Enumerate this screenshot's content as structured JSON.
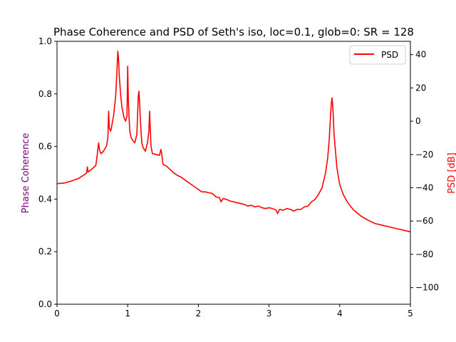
{
  "chart_data": {
    "type": "line",
    "title": "Phase Coherence and PSD of Seth's iso, loc=0.1, glob=0: SR = 128",
    "xlabel": "",
    "ylabel_left": "Phase Coherence",
    "ylabel_right": "PSD [dB]",
    "xlim": [
      0,
      5
    ],
    "ylim_left": [
      0.0,
      1.0
    ],
    "ylim_right": [
      -110,
      48
    ],
    "x_ticks": [
      "0",
      "1",
      "2",
      "3",
      "4",
      "5"
    ],
    "y_ticks_left": [
      "0.0",
      "0.2",
      "0.4",
      "0.6",
      "0.8",
      "1.0"
    ],
    "y_ticks_right": [
      "−100",
      "−80",
      "−60",
      "−40",
      "−20",
      "0",
      "20",
      "40"
    ],
    "legend": {
      "position": "top-right",
      "entries": [
        "PSD"
      ]
    },
    "grid": false,
    "series": [
      {
        "name": "PSD",
        "axis": "right",
        "color": "#ff0000",
        "x": [
          0,
          0.1,
          0.2,
          0.3,
          0.4,
          0.42,
          0.43,
          0.44,
          0.5,
          0.55,
          0.57,
          0.58,
          0.59,
          0.6,
          0.62,
          0.65,
          0.7,
          0.72,
          0.73,
          0.74,
          0.76,
          0.8,
          0.83,
          0.85,
          0.86,
          0.87,
          0.88,
          0.9,
          0.92,
          0.95,
          0.97,
          0.99,
          1.0,
          1.01,
          1.02,
          1.03,
          1.05,
          1.08,
          1.1,
          1.13,
          1.15,
          1.16,
          1.17,
          1.18,
          1.2,
          1.22,
          1.25,
          1.28,
          1.3,
          1.31,
          1.32,
          1.33,
          1.35,
          1.4,
          1.45,
          1.47,
          1.48,
          1.5,
          1.55,
          1.6,
          1.65,
          1.7,
          1.75,
          1.8,
          1.85,
          1.9,
          1.95,
          2.0,
          2.05,
          2.1,
          2.15,
          2.2,
          2.25,
          2.3,
          2.32,
          2.35,
          2.4,
          2.45,
          2.5,
          2.55,
          2.6,
          2.65,
          2.7,
          2.75,
          2.8,
          2.85,
          2.9,
          2.95,
          3.0,
          3.05,
          3.1,
          3.12,
          3.15,
          3.2,
          3.25,
          3.3,
          3.35,
          3.4,
          3.45,
          3.5,
          3.55,
          3.6,
          3.65,
          3.7,
          3.75,
          3.8,
          3.83,
          3.85,
          3.87,
          3.88,
          3.89,
          3.9,
          3.91,
          3.92,
          3.94,
          3.96,
          4.0,
          4.05,
          4.1,
          4.15,
          4.2,
          4.3,
          4.4,
          4.5,
          4.6,
          4.7,
          4.8,
          4.9,
          5.0
        ],
        "values": [
          -37.5,
          -37.2,
          -36.0,
          -34.5,
          -31.8,
          -31.0,
          -27.5,
          -30.5,
          -28.5,
          -26.5,
          -20.0,
          -16.0,
          -13.0,
          -17.0,
          -19.5,
          -18.5,
          -15.0,
          -10.0,
          6.0,
          -4.0,
          -6.0,
          3.0,
          15.0,
          32.0,
          42.0,
          38.0,
          28.0,
          16.0,
          8.0,
          2.0,
          0.0,
          3.0,
          33.0,
          12.0,
          2.0,
          -6.0,
          -10.0,
          -12.0,
          -13.0,
          -8.0,
          15.0,
          18.0,
          10.0,
          0.0,
          -13.0,
          -16.0,
          -18.0,
          -13.0,
          -6.0,
          6.0,
          -5.0,
          -15.0,
          -19.5,
          -20.0,
          -20.5,
          -17.0,
          -19.0,
          -26.0,
          -27.0,
          -29.0,
          -31.0,
          -32.5,
          -33.5,
          -35.0,
          -36.5,
          -38.0,
          -39.5,
          -41.0,
          -42.5,
          -42.5,
          -43.0,
          -43.5,
          -45.5,
          -46.0,
          -48.5,
          -46.5,
          -47.0,
          -48.0,
          -48.5,
          -49.0,
          -49.5,
          -50.0,
          -51.0,
          -50.5,
          -51.5,
          -51.0,
          -52.0,
          -52.5,
          -52.0,
          -52.5,
          -53.5,
          -55.5,
          -53.0,
          -53.5,
          -52.5,
          -53.0,
          -54.0,
          -53.0,
          -53.0,
          -51.5,
          -51.0,
          -48.5,
          -47.0,
          -44.0,
          -40.0,
          -31.0,
          -22.0,
          -12.0,
          3.0,
          10.0,
          14.0,
          10.0,
          2.0,
          -8.0,
          -18.0,
          -28.0,
          -38.0,
          -44.0,
          -48.0,
          -51.0,
          -53.5,
          -57.0,
          -59.5,
          -61.5,
          -62.5,
          -63.5,
          -64.5,
          -65.5,
          -66.5
        ]
      }
    ]
  }
}
